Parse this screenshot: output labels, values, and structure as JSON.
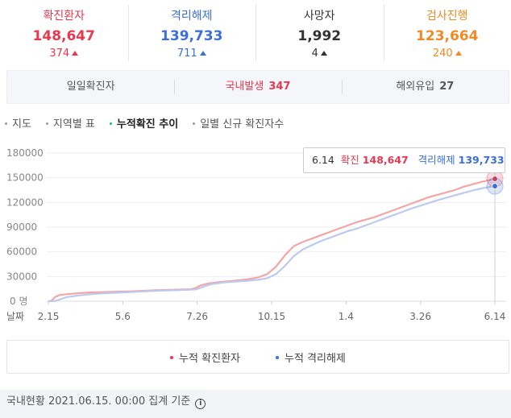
{
  "stats": [
    {
      "label": "확진환자",
      "value": "148,647",
      "delta": "374",
      "color": "#e8384f"
    },
    {
      "label": "격리해제",
      "value": "139,733",
      "delta": "711",
      "color": "#3c6fd8"
    },
    {
      "label": "사망자",
      "value": "1,992",
      "delta": "4",
      "color": "#333333"
    },
    {
      "label": "검사진행",
      "value": "123,664",
      "delta": "240",
      "color": "#f08a24"
    }
  ],
  "sub": {
    "daily_label": "일일확진자",
    "domestic_label": "국내발생",
    "domestic_value": "347",
    "overseas_label": "해외유입",
    "overseas_value": "27"
  },
  "tabs": [
    "지도",
    "지역별 표",
    "누적확진 추이",
    "일별 신규 확진자수"
  ],
  "active_tab": "누적확진 추이",
  "tooltip": {
    "date": "6.14",
    "confirmed_label": "확진",
    "confirmed_value": "148,647",
    "released_label": "격리해제",
    "released_value": "139,733"
  },
  "legend": [
    "누적 확진환자",
    "누적 격리해제"
  ],
  "footer": {
    "text": "국내현황 2021.06.15. 00:00 집계 기준"
  },
  "chart_data": {
    "type": "line",
    "x_axis_label": "날짜",
    "y_zero_label": "0 명",
    "x_ticks": [
      "2.15",
      "5.6",
      "7.26",
      "10.15",
      "1.4",
      "3.26",
      "6.14"
    ],
    "y_ticks": [
      30000,
      60000,
      90000,
      120000,
      150000,
      180000
    ],
    "ylim": [
      0,
      180000
    ],
    "colors": {
      "confirmed": "#f4a6a6",
      "released": "#bccaf0",
      "confirmed_marker": "#e8384f",
      "released_marker": "#3c6fd8"
    },
    "series": [
      {
        "name": "누적 확진환자",
        "x": [
          0,
          3,
          6,
          10,
          16,
          24,
          34,
          40,
          48,
          56,
          64,
          72,
          80,
          88,
          96,
          104,
          112,
          120,
          128,
          132,
          136,
          140,
          144,
          148,
          152,
          156,
          160,
          164,
          168,
          172,
          180,
          188,
          196,
          204,
          212,
          220,
          228,
          236,
          244,
          252,
          260,
          268,
          276,
          284,
          292,
          300,
          308,
          316,
          324,
          332,
          340,
          348,
          356,
          364,
          372,
          380,
          388,
          396,
          400
        ],
        "values": [
          30,
          800,
          5000,
          7500,
          8400,
          9500,
          10400,
          10800,
          11100,
          11300,
          11600,
          11900,
          12300,
          12800,
          13300,
          13600,
          14000,
          14400,
          14600,
          16000,
          19000,
          20500,
          21700,
          22400,
          23100,
          23600,
          24100,
          24600,
          25100,
          25600,
          27000,
          29000,
          33000,
          42000,
          56000,
          67000,
          72000,
          76000,
          80000,
          84000,
          88000,
          92000,
          96000,
          99000,
          102000,
          106000,
          110000,
          114000,
          118000,
          122000,
          126000,
          129000,
          132000,
          135000,
          139000,
          142000,
          145000,
          147500,
          148647
        ]
      },
      {
        "name": "누적 격리해제",
        "x": [
          0,
          3,
          6,
          10,
          16,
          24,
          34,
          40,
          48,
          56,
          64,
          72,
          80,
          88,
          96,
          104,
          112,
          120,
          128,
          132,
          136,
          140,
          144,
          148,
          152,
          156,
          160,
          164,
          168,
          172,
          180,
          188,
          196,
          204,
          212,
          220,
          228,
          236,
          244,
          252,
          260,
          268,
          276,
          284,
          292,
          300,
          308,
          316,
          324,
          332,
          340,
          348,
          356,
          364,
          372,
          380,
          388,
          396,
          400
        ],
        "values": [
          0,
          50,
          300,
          2000,
          4800,
          6500,
          8000,
          8800,
          9500,
          10000,
          10500,
          11000,
          11500,
          12000,
          12500,
          12900,
          13300,
          13700,
          14000,
          14400,
          16000,
          18200,
          20000,
          21100,
          21900,
          22600,
          23100,
          23500,
          23900,
          24300,
          25000,
          26000,
          28000,
          33000,
          43000,
          55000,
          63000,
          68000,
          73000,
          77000,
          81000,
          85000,
          88000,
          92000,
          96000,
          100000,
          104000,
          108000,
          112000,
          115500,
          119000,
          122500,
          125500,
          128500,
          131500,
          134500,
          137000,
          139000,
          139733
        ]
      }
    ]
  }
}
